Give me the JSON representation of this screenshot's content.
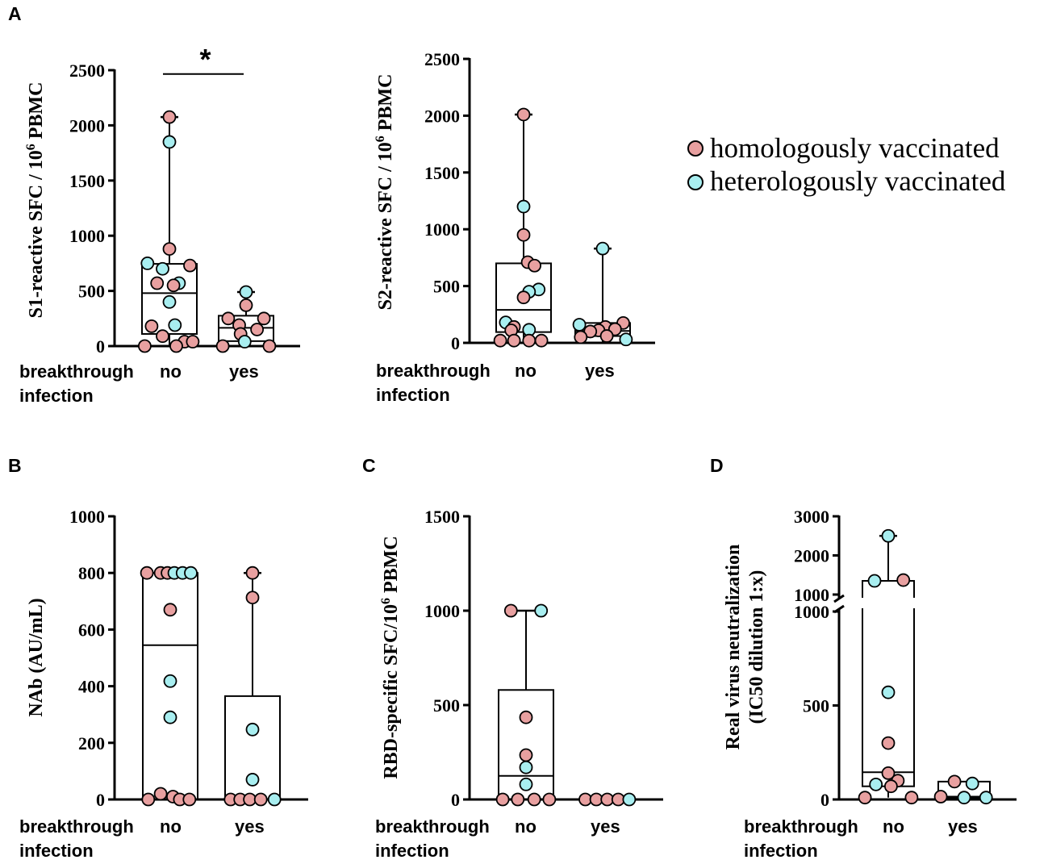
{
  "colors": {
    "homologous": "#e8a0a0",
    "heterologous": "#a8eef0",
    "ink": "#000000"
  },
  "legend": {
    "homologous": "homologously vaccinated",
    "heterologous": "heterologously vaccinated"
  },
  "labels": {
    "panel_A": "A",
    "panel_B": "B",
    "panel_C": "C",
    "panel_D": "D",
    "s1_ylabel_pre": "S1-reactive SFC / 10",
    "s1_ylabel_sup": "6",
    "s1_ylabel_post": " PBMC",
    "s2_ylabel_pre": "S2-reactive SFC / 10",
    "s2_ylabel_sup": "6",
    "s2_ylabel_post": " PBMC",
    "nab_ylabel": "NAb (AU/mL)",
    "rbd_ylabel_pre": "RBD-specific SFC/10",
    "rbd_ylabel_sup": "6",
    "rbd_ylabel_post": " PBMC",
    "rvn_ylabel_1": "Real virus neutralization",
    "rvn_ylabel_2": "(IC50 dilution 1:x)",
    "cat_breakthrough": "breakthrough",
    "cat_infection": "infection",
    "cat_no": "no",
    "cat_yes": "yes",
    "significance": "*"
  },
  "chart_data": [
    {
      "id": "S1",
      "type": "box-scatter",
      "ylabel": "S1-reactive SFC / 10^6 PBMC",
      "ylim": [
        0,
        2500
      ],
      "yticks": [
        0,
        500,
        1000,
        1500,
        2000,
        2500
      ],
      "categories": [
        "no",
        "yes"
      ],
      "groups": [
        {
          "category": "no",
          "box": {
            "min": 0,
            "q1": 110,
            "median": 480,
            "q3": 745,
            "max": 2075
          },
          "points": [
            {
              "y": 2075,
              "v": "homologous",
              "dx": 0
            },
            {
              "y": 1850,
              "v": "heterologous",
              "dx": 0
            },
            {
              "y": 880,
              "v": "homologous",
              "dx": 0
            },
            {
              "y": 750,
              "v": "heterologous",
              "dx": -0.8
            },
            {
              "y": 730,
              "v": "homologous",
              "dx": 0.75
            },
            {
              "y": 700,
              "v": "heterologous",
              "dx": -0.25
            },
            {
              "y": 570,
              "v": "heterologous",
              "dx": 0.35
            },
            {
              "y": 570,
              "v": "homologous",
              "dx": -0.45
            },
            {
              "y": 550,
              "v": "homologous",
              "dx": 0.15
            },
            {
              "y": 400,
              "v": "heterologous",
              "dx": 0
            },
            {
              "y": 190,
              "v": "heterologous",
              "dx": 0.2
            },
            {
              "y": 180,
              "v": "homologous",
              "dx": -0.65
            },
            {
              "y": 90,
              "v": "homologous",
              "dx": -0.25
            },
            {
              "y": 40,
              "v": "homologous",
              "dx": 0.55
            },
            {
              "y": 40,
              "v": "homologous",
              "dx": 0.85
            },
            {
              "y": 0,
              "v": "homologous",
              "dx": -0.9
            },
            {
              "y": 0,
              "v": "homologous",
              "dx": 0.25
            }
          ]
        },
        {
          "category": "yes",
          "box": {
            "min": 0,
            "q1": 45,
            "median": 165,
            "q3": 275,
            "max": 490
          },
          "points": [
            {
              "y": 490,
              "v": "heterologous",
              "dx": 0
            },
            {
              "y": 370,
              "v": "homologous",
              "dx": 0
            },
            {
              "y": 250,
              "v": "homologous",
              "dx": -0.65
            },
            {
              "y": 250,
              "v": "homologous",
              "dx": 0.65
            },
            {
              "y": 190,
              "v": "homologous",
              "dx": -0.25
            },
            {
              "y": 150,
              "v": "homologous",
              "dx": 0.4
            },
            {
              "y": 110,
              "v": "homologous",
              "dx": -0.2
            },
            {
              "y": 40,
              "v": "heterologous",
              "dx": -0.05
            },
            {
              "y": 0,
              "v": "homologous",
              "dx": -0.85
            },
            {
              "y": 0,
              "v": "homologous",
              "dx": 0.85
            }
          ]
        }
      ],
      "significance": {
        "between": [
          "no",
          "yes"
        ],
        "label": "*",
        "y": 2465
      }
    },
    {
      "id": "S2",
      "type": "box-scatter",
      "ylabel": "S2-reactive SFC / 10^6 PBMC",
      "ylim": [
        0,
        2500
      ],
      "yticks": [
        0,
        500,
        1000,
        1500,
        2000,
        2500
      ],
      "categories": [
        "no",
        "yes"
      ],
      "groups": [
        {
          "category": "no",
          "box": {
            "min": 0,
            "q1": 95,
            "median": 290,
            "q3": 700,
            "max": 2010
          },
          "points": [
            {
              "y": 2010,
              "v": "homologous",
              "dx": 0
            },
            {
              "y": 1200,
              "v": "heterologous",
              "dx": 0
            },
            {
              "y": 950,
              "v": "homologous",
              "dx": 0
            },
            {
              "y": 710,
              "v": "homologous",
              "dx": 0.15
            },
            {
              "y": 680,
              "v": "homologous",
              "dx": 0.4
            },
            {
              "y": 470,
              "v": "heterologous",
              "dx": 0.55
            },
            {
              "y": 450,
              "v": "heterologous",
              "dx": 0.2
            },
            {
              "y": 400,
              "v": "homologous",
              "dx": 0
            },
            {
              "y": 180,
              "v": "heterologous",
              "dx": -0.65
            },
            {
              "y": 140,
              "v": "homologous",
              "dx": -0.35
            },
            {
              "y": 115,
              "v": "heterologous",
              "dx": 0.2
            },
            {
              "y": 110,
              "v": "homologous",
              "dx": -0.45
            },
            {
              "y": 20,
              "v": "homologous",
              "dx": -0.85
            },
            {
              "y": 20,
              "v": "homologous",
              "dx": -0.35
            },
            {
              "y": 20,
              "v": "homologous",
              "dx": 0.2
            },
            {
              "y": 20,
              "v": "homologous",
              "dx": 0.65
            }
          ]
        },
        {
          "category": "yes",
          "box": {
            "min": 0,
            "q1": 60,
            "median": 105,
            "q3": 175,
            "max": 830
          },
          "points": [
            {
              "y": 830,
              "v": "heterologous",
              "dx": 0
            },
            {
              "y": 175,
              "v": "homologous",
              "dx": 0.75
            },
            {
              "y": 160,
              "v": "heterologous",
              "dx": -0.85
            },
            {
              "y": 140,
              "v": "homologous",
              "dx": 0.1
            },
            {
              "y": 120,
              "v": "homologous",
              "dx": 0.45
            },
            {
              "y": 110,
              "v": "homologous",
              "dx": -0.15
            },
            {
              "y": 100,
              "v": "homologous",
              "dx": -0.45
            },
            {
              "y": 60,
              "v": "homologous",
              "dx": 0.15
            },
            {
              "y": 50,
              "v": "homologous",
              "dx": -0.8
            },
            {
              "y": 30,
              "v": "heterologous",
              "dx": 0.85
            }
          ]
        }
      ]
    },
    {
      "id": "NAb",
      "type": "box-scatter",
      "ylabel": "NAb (AU/mL)",
      "ylim": [
        0,
        1000
      ],
      "yticks": [
        0,
        200,
        400,
        600,
        800,
        1000
      ],
      "categories": [
        "no",
        "yes"
      ],
      "groups": [
        {
          "category": "no",
          "box": {
            "min": 0,
            "q1": 0,
            "median": 545,
            "q3": 800,
            "max": 800
          },
          "points": [
            {
              "y": 800,
              "v": "homologous",
              "dx": -0.85
            },
            {
              "y": 800,
              "v": "homologous",
              "dx": -0.35
            },
            {
              "y": 800,
              "v": "homologous",
              "dx": -0.1
            },
            {
              "y": 800,
              "v": "heterologous",
              "dx": 0.15
            },
            {
              "y": 800,
              "v": "heterologous",
              "dx": 0.45
            },
            {
              "y": 800,
              "v": "heterologous",
              "dx": 0.75
            },
            {
              "y": 670,
              "v": "homologous",
              "dx": 0
            },
            {
              "y": 418,
              "v": "heterologous",
              "dx": 0
            },
            {
              "y": 290,
              "v": "heterologous",
              "dx": 0
            },
            {
              "y": 20,
              "v": "homologous",
              "dx": -0.35
            },
            {
              "y": 10,
              "v": "homologous",
              "dx": 0.1
            },
            {
              "y": 0,
              "v": "homologous",
              "dx": -0.8
            },
            {
              "y": 0,
              "v": "homologous",
              "dx": 0.35
            },
            {
              "y": 0,
              "v": "homologous",
              "dx": 0.7
            }
          ]
        },
        {
          "category": "yes",
          "box": {
            "min": 0,
            "q1": 0,
            "median": 0,
            "q3": 365,
            "max": 800
          },
          "points": [
            {
              "y": 800,
              "v": "homologous",
              "dx": 0
            },
            {
              "y": 713,
              "v": "homologous",
              "dx": 0
            },
            {
              "y": 247,
              "v": "heterologous",
              "dx": 0
            },
            {
              "y": 70,
              "v": "heterologous",
              "dx": 0
            },
            {
              "y": 0,
              "v": "homologous",
              "dx": -0.8
            },
            {
              "y": 0,
              "v": "homologous",
              "dx": -0.45
            },
            {
              "y": 0,
              "v": "homologous",
              "dx": -0.1
            },
            {
              "y": 0,
              "v": "homologous",
              "dx": 0.3
            },
            {
              "y": 0,
              "v": "heterologous",
              "dx": 0.8
            }
          ]
        }
      ]
    },
    {
      "id": "RBD",
      "type": "box-scatter",
      "ylabel": "RBD-specific SFC/10^6 PBMC",
      "ylim": [
        0,
        1500
      ],
      "yticks": [
        0,
        500,
        1000,
        1500
      ],
      "categories": [
        "no",
        "yes"
      ],
      "groups": [
        {
          "category": "no",
          "box": {
            "min": 0,
            "q1": 0,
            "median": 125,
            "q3": 580,
            "max": 1000
          },
          "points": [
            {
              "y": 1000,
              "v": "homologous",
              "dx": -0.55
            },
            {
              "y": 1000,
              "v": "heterologous",
              "dx": 0.55
            },
            {
              "y": 435,
              "v": "homologous",
              "dx": 0
            },
            {
              "y": 235,
              "v": "homologous",
              "dx": 0
            },
            {
              "y": 170,
              "v": "heterologous",
              "dx": 0
            },
            {
              "y": 80,
              "v": "heterologous",
              "dx": 0
            },
            {
              "y": 0,
              "v": "homologous",
              "dx": -0.85
            },
            {
              "y": 0,
              "v": "homologous",
              "dx": -0.3
            },
            {
              "y": 0,
              "v": "homologous",
              "dx": 0.3
            },
            {
              "y": 0,
              "v": "homologous",
              "dx": 0.85
            }
          ]
        },
        {
          "category": "yes",
          "box": {
            "min": 0,
            "q1": 0,
            "median": 0,
            "q3": 0,
            "max": 0
          },
          "points": [
            {
              "y": 0,
              "v": "homologous",
              "dx": -0.75
            },
            {
              "y": 0,
              "v": "homologous",
              "dx": -0.35
            },
            {
              "y": 0,
              "v": "homologous",
              "dx": 0.05
            },
            {
              "y": 0,
              "v": "homologous",
              "dx": 0.45
            },
            {
              "y": 0,
              "v": "heterologous",
              "dx": 0.85
            }
          ]
        }
      ]
    },
    {
      "id": "RVN",
      "type": "box-scatter-broken-axis",
      "ylabel": "Real virus neutralization (IC50 dilution 1:x)",
      "lower_ylim": [
        0,
        1000
      ],
      "lower_yticks": [
        0,
        500,
        1000
      ],
      "upper_ylim": [
        1000,
        3000
      ],
      "upper_yticks": [
        1000,
        2000,
        3000
      ],
      "categories": [
        "no",
        "yes"
      ],
      "groups": [
        {
          "category": "no",
          "box": {
            "min": 10,
            "q1": 70,
            "median": 145,
            "q3": 1350,
            "max": 2500
          },
          "points": [
            {
              "y": 2500,
              "v": "heterologous",
              "dx": 0
            },
            {
              "y": 1370,
              "v": "homologous",
              "dx": 0.55
            },
            {
              "y": 1350,
              "v": "heterologous",
              "dx": -0.5
            },
            {
              "y": 570,
              "v": "heterologous",
              "dx": 0
            },
            {
              "y": 300,
              "v": "homologous",
              "dx": 0
            },
            {
              "y": 140,
              "v": "homologous",
              "dx": 0
            },
            {
              "y": 100,
              "v": "homologous",
              "dx": 0.35
            },
            {
              "y": 80,
              "v": "heterologous",
              "dx": -0.45
            },
            {
              "y": 70,
              "v": "homologous",
              "dx": 0.1
            },
            {
              "y": 10,
              "v": "homologous",
              "dx": -0.85
            },
            {
              "y": 10,
              "v": "homologous",
              "dx": 0.85
            }
          ]
        },
        {
          "category": "yes",
          "box": {
            "min": 10,
            "q1": 10,
            "median": 15,
            "q3": 95,
            "max": 95
          },
          "points": [
            {
              "y": 95,
              "v": "homologous",
              "dx": -0.35
            },
            {
              "y": 85,
              "v": "heterologous",
              "dx": 0.3
            },
            {
              "y": 15,
              "v": "homologous",
              "dx": -0.85
            },
            {
              "y": 10,
              "v": "heterologous",
              "dx": 0
            },
            {
              "y": 10,
              "v": "heterologous",
              "dx": 0.8
            }
          ]
        }
      ]
    }
  ]
}
